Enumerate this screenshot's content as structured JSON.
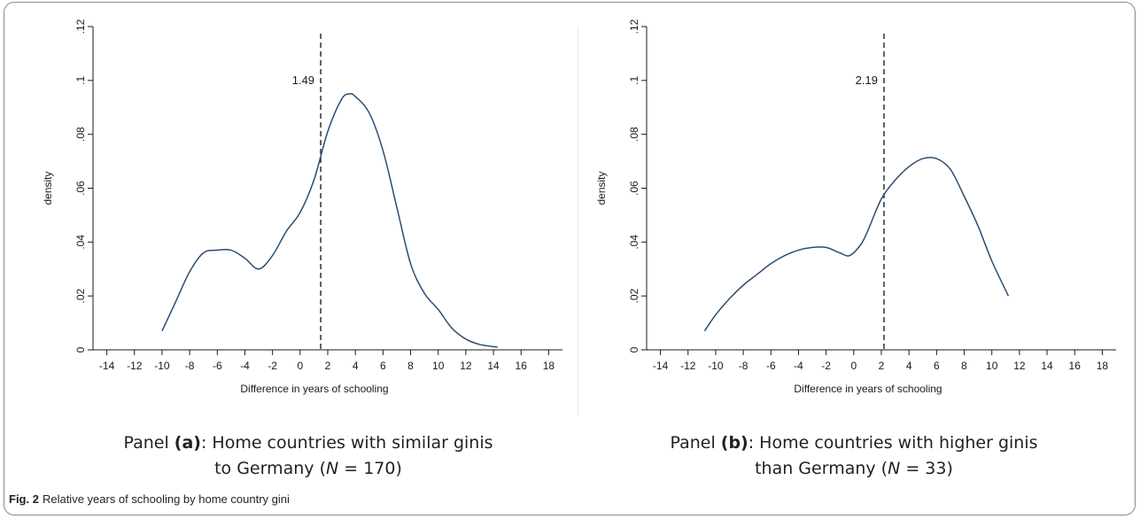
{
  "figure_caption": {
    "label": "Fig. 2",
    "text": "Relative years of schooling by home country gini"
  },
  "panels": [
    {
      "caption": {
        "prefix": "Panel ",
        "letter": "(a)",
        "line1_rest": ": Home countries with similar ginis",
        "line2_pre": "to Germany (",
        "n_label": "N",
        "line2_post": " = 170)"
      }
    },
    {
      "caption": {
        "prefix": "Panel ",
        "letter": "(b)",
        "line1_rest": ": Home countries with higher ginis",
        "line2_pre": "than Germany (",
        "n_label": "N",
        "line2_post": " = 33)"
      }
    }
  ],
  "chart_data": [
    {
      "type": "line",
      "xlabel": "Difference in years of schooling",
      "ylabel": "density",
      "xlim": [
        -15,
        19
      ],
      "ylim": [
        0,
        0.12
      ],
      "x_ticks": [
        -14,
        -12,
        -10,
        -8,
        -6,
        -4,
        -2,
        0,
        2,
        4,
        6,
        8,
        10,
        12,
        14,
        16,
        18
      ],
      "x_tick_labels": [
        "-14",
        "-12",
        "-10",
        "-8",
        "-6",
        "-4",
        "-2",
        "0",
        "2",
        "4",
        "6",
        "8",
        "10",
        "12",
        "14",
        "16",
        "18"
      ],
      "y_ticks": [
        0,
        0.02,
        0.04,
        0.06,
        0.08,
        0.1,
        0.12
      ],
      "y_tick_labels": [
        "0",
        ".02",
        ".04",
        ".06",
        ".08",
        ".1",
        ".12"
      ],
      "grid": false,
      "series": [
        {
          "x": [
            -10,
            -9,
            -8,
            -7,
            -6,
            -5,
            -4,
            -3,
            -2,
            -1,
            0,
            1,
            2,
            3,
            3.6,
            4,
            5,
            6,
            7,
            8,
            9,
            10,
            11,
            12,
            13,
            14.3
          ],
          "y": [
            0.007,
            0.018,
            0.029,
            0.036,
            0.037,
            0.037,
            0.034,
            0.03,
            0.035,
            0.044,
            0.051,
            0.063,
            0.081,
            0.093,
            0.095,
            0.094,
            0.088,
            0.074,
            0.053,
            0.032,
            0.021,
            0.015,
            0.008,
            0.004,
            0.002,
            0.001
          ]
        }
      ],
      "reference_line": {
        "x": 1.49,
        "label": "1.49"
      }
    },
    {
      "type": "line",
      "xlabel": "Difference in years of schooling",
      "ylabel": "density",
      "xlim": [
        -15,
        19
      ],
      "ylim": [
        0,
        0.12
      ],
      "x_ticks": [
        -14,
        -12,
        -10,
        -8,
        -6,
        -4,
        -2,
        0,
        2,
        4,
        6,
        8,
        10,
        12,
        14,
        16,
        18
      ],
      "x_tick_labels": [
        "-14",
        "-12",
        "-10",
        "-8",
        "-6",
        "-4",
        "-2",
        "0",
        "2",
        "4",
        "6",
        "8",
        "10",
        "12",
        "14",
        "16",
        "18"
      ],
      "y_ticks": [
        0,
        0.02,
        0.04,
        0.06,
        0.08,
        0.1,
        0.12
      ],
      "y_tick_labels": [
        "0",
        ".02",
        ".04",
        ".06",
        ".08",
        ".1",
        ".12"
      ],
      "grid": false,
      "series": [
        {
          "x": [
            -10.8,
            -10,
            -9,
            -8,
            -7,
            -6,
            -5,
            -4,
            -3,
            -2,
            -1,
            -0.3,
            0.5,
            1,
            2,
            3,
            4,
            5,
            6,
            7,
            8,
            9,
            10,
            11.2
          ],
          "y": [
            0.007,
            0.013,
            0.019,
            0.024,
            0.028,
            0.032,
            0.035,
            0.037,
            0.038,
            0.038,
            0.036,
            0.035,
            0.039,
            0.044,
            0.056,
            0.063,
            0.068,
            0.071,
            0.071,
            0.067,
            0.057,
            0.046,
            0.033,
            0.02
          ]
        }
      ],
      "reference_line": {
        "x": 2.19,
        "label": "2.19"
      }
    }
  ]
}
